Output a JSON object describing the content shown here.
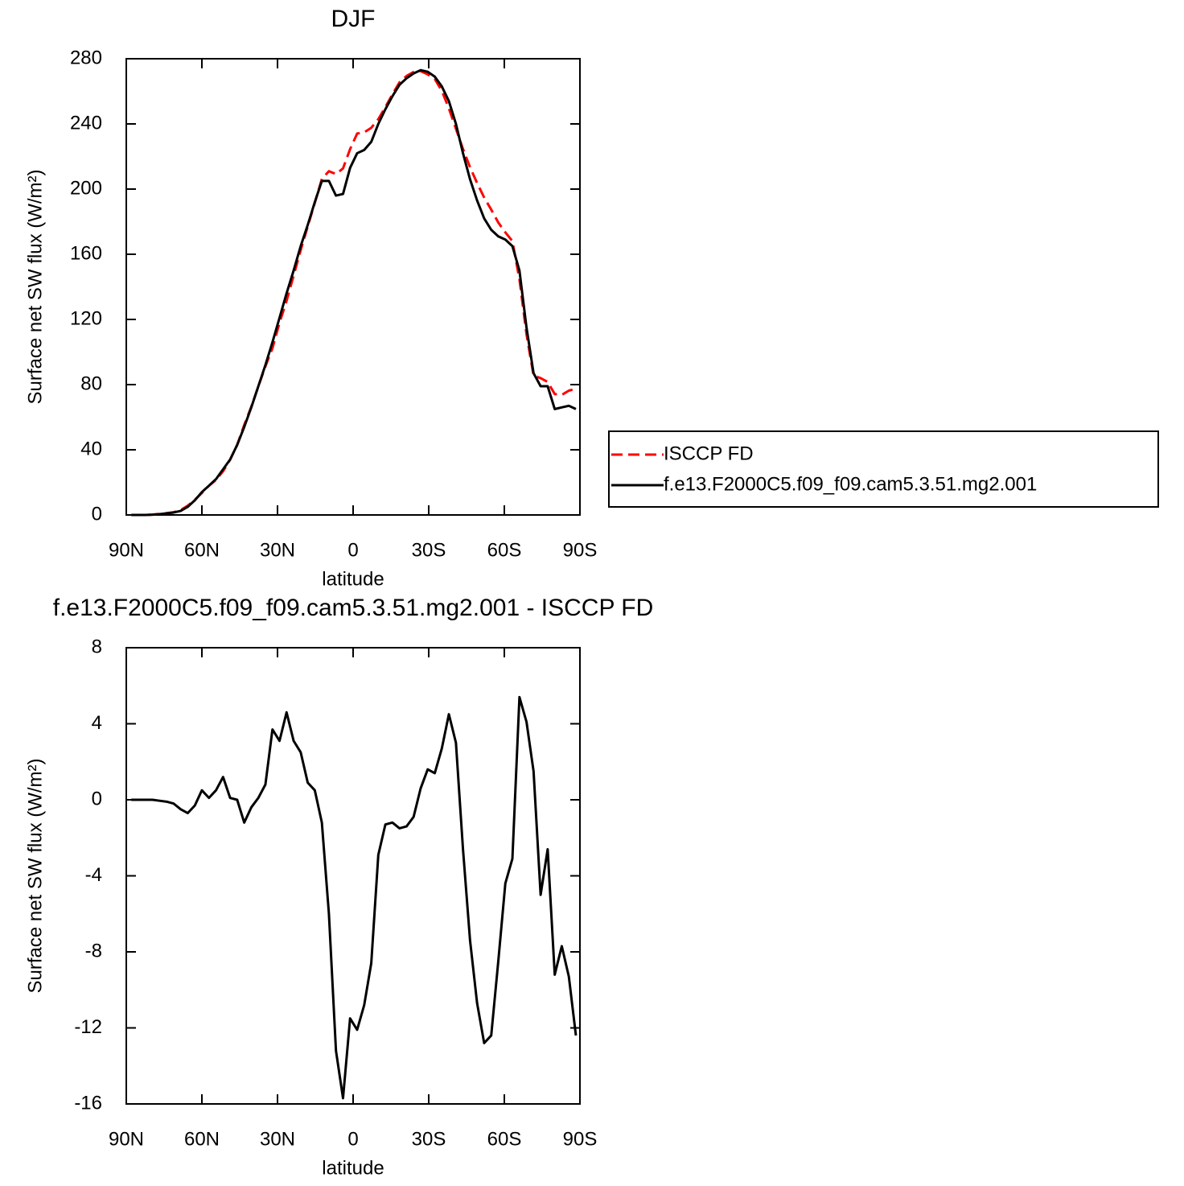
{
  "chart_data": [
    {
      "type": "line",
      "title": "DJF",
      "xlabel": "latitude",
      "ylabel": "Surface net SW flux (W/m²)",
      "x": [
        88,
        85.2,
        82.4,
        79.6,
        76.8,
        74,
        71.2,
        68.4,
        65.6,
        62.8,
        60,
        57.2,
        54.4,
        51.6,
        48.8,
        46,
        43.2,
        40.4,
        37.6,
        34.8,
        32,
        29.2,
        26.4,
        23.6,
        20.8,
        18,
        15.2,
        12.4,
        9.6,
        6.8,
        4,
        1.2,
        -1.6,
        -4.4,
        -7.2,
        -10,
        -12.8,
        -15.6,
        -18.4,
        -21.2,
        -24,
        -26.8,
        -29.6,
        -32.4,
        -35.2,
        -38,
        -40.8,
        -43.6,
        -46.4,
        -49.2,
        -52,
        -54.8,
        -57.6,
        -60.4,
        -63.2,
        -66,
        -68.8,
        -71.6,
        -74.4,
        -77.2,
        -80,
        -82.8,
        -85.6,
        -88.4
      ],
      "series": [
        {
          "name": "ISCCP FD",
          "color": "#ff0000",
          "linestyle": "dashed",
          "values": [
            0,
            0,
            0,
            0.2,
            0.6,
            1.1,
            1.7,
            3,
            5.7,
            9.3,
            13.5,
            17.9,
            21.5,
            26.8,
            33.9,
            43,
            55.2,
            66.4,
            78.9,
            91.2,
            102.3,
            117.9,
            131.4,
            146.9,
            162.5,
            177.1,
            191.5,
            206.2,
            211,
            209.2,
            212.7,
            224.5,
            234.1,
            234.8,
            237.6,
            242.9,
            250.3,
            258.2,
            265.5,
            269.4,
            271.9,
            272.4,
            270.4,
            267.6,
            260.3,
            249.5,
            237,
            224.6,
            213.4,
            203.7,
            194.8,
            187.4,
            179.5,
            173.4,
            168.1,
            144.6,
            110.9,
            85.5,
            84,
            81.6,
            74.2,
            73.7,
            76.3,
            77.4
          ]
        },
        {
          "name": "f.e13.F2000C5.f09_f09.cam5.3.51.mg2.001",
          "color": "#000000",
          "linestyle": "solid",
          "values": [
            0,
            0,
            0,
            0.2,
            0.5,
            1,
            1.5,
            2.5,
            5,
            9,
            14,
            18,
            22,
            28,
            34,
            43,
            54,
            66,
            79,
            92,
            106,
            121,
            136,
            150,
            165,
            178,
            192,
            205,
            205,
            196,
            197,
            213,
            222,
            224,
            229,
            240,
            249,
            257,
            264,
            268,
            271,
            273,
            272,
            269,
            263,
            254,
            240,
            222,
            206,
            193,
            182,
            175,
            171,
            169,
            165,
            150,
            115,
            87,
            79,
            79,
            65,
            66,
            67,
            65
          ]
        }
      ],
      "xlim": [
        90,
        -90
      ],
      "xticks": [
        {
          "value": 90,
          "label": "90N"
        },
        {
          "value": 60,
          "label": "60N"
        },
        {
          "value": 30,
          "label": "30N"
        },
        0,
        {
          "value": -30,
          "label": "30S"
        },
        {
          "value": -60,
          "label": "60S"
        },
        {
          "value": -90,
          "label": "90S"
        }
      ],
      "ylim": [
        0,
        280
      ],
      "yticks": [
        0,
        40,
        80,
        120,
        160,
        200,
        240,
        280
      ],
      "legend": "right"
    },
    {
      "type": "line",
      "title": "f.e13.F2000C5.f09_f09.cam5.3.51.mg2.001 - ISCCP FD",
      "xlabel": "latitude",
      "ylabel": "Surface net SW flux (W/m²)",
      "x": [
        88,
        85.2,
        82.4,
        79.6,
        76.8,
        74,
        71.2,
        68.4,
        65.6,
        62.8,
        60,
        57.2,
        54.4,
        51.6,
        48.8,
        46,
        43.2,
        40.4,
        37.6,
        34.8,
        32,
        29.2,
        26.4,
        23.6,
        20.8,
        18,
        15.2,
        12.4,
        9.6,
        6.8,
        4,
        1.2,
        -1.6,
        -4.4,
        -7.2,
        -10,
        -12.8,
        -15.6,
        -18.4,
        -21.2,
        -24,
        -26.8,
        -29.6,
        -32.4,
        -35.2,
        -38,
        -40.8,
        -43.6,
        -46.4,
        -49.2,
        -52,
        -54.8,
        -57.6,
        -60.4,
        -63.2,
        -66,
        -68.8,
        -71.6,
        -74.4,
        -77.2,
        -80,
        -82.8,
        -85.6,
        -88.4
      ],
      "values": [
        0,
        0,
        0,
        0,
        -0.05,
        -0.1,
        -0.2,
        -0.5,
        -0.7,
        -0.3,
        0.5,
        0.1,
        0.5,
        1.2,
        0.1,
        0,
        -1.2,
        -0.4,
        0.1,
        0.8,
        3.7,
        3.1,
        4.6,
        3.1,
        2.5,
        0.9,
        0.5,
        -1.2,
        -6,
        -13.2,
        -15.7,
        -11.5,
        -12.1,
        -10.8,
        -8.6,
        -2.9,
        -1.3,
        -1.2,
        -1.5,
        -1.4,
        -0.9,
        0.6,
        1.6,
        1.4,
        2.7,
        4.5,
        3.0,
        -2.6,
        -7.4,
        -10.7,
        -12.8,
        -12.4,
        -8.5,
        -4.4,
        -3.1,
        5.4,
        4.1,
        1.5,
        -5.0,
        -2.6,
        -9.2,
        -7.7,
        -9.3,
        -12.4
      ],
      "color": "#000000",
      "xlim": [
        90,
        -90
      ],
      "xticks": [
        {
          "value": 90,
          "label": "90N"
        },
        {
          "value": 60,
          "label": "60N"
        },
        {
          "value": 30,
          "label": "30N"
        },
        0,
        {
          "value": -30,
          "label": "30S"
        },
        {
          "value": -60,
          "label": "60S"
        },
        {
          "value": -90,
          "label": "90S"
        }
      ],
      "ylim": [
        -16,
        8
      ],
      "yticks": [
        -16,
        -12,
        -8,
        -4,
        0,
        4,
        8
      ]
    }
  ]
}
